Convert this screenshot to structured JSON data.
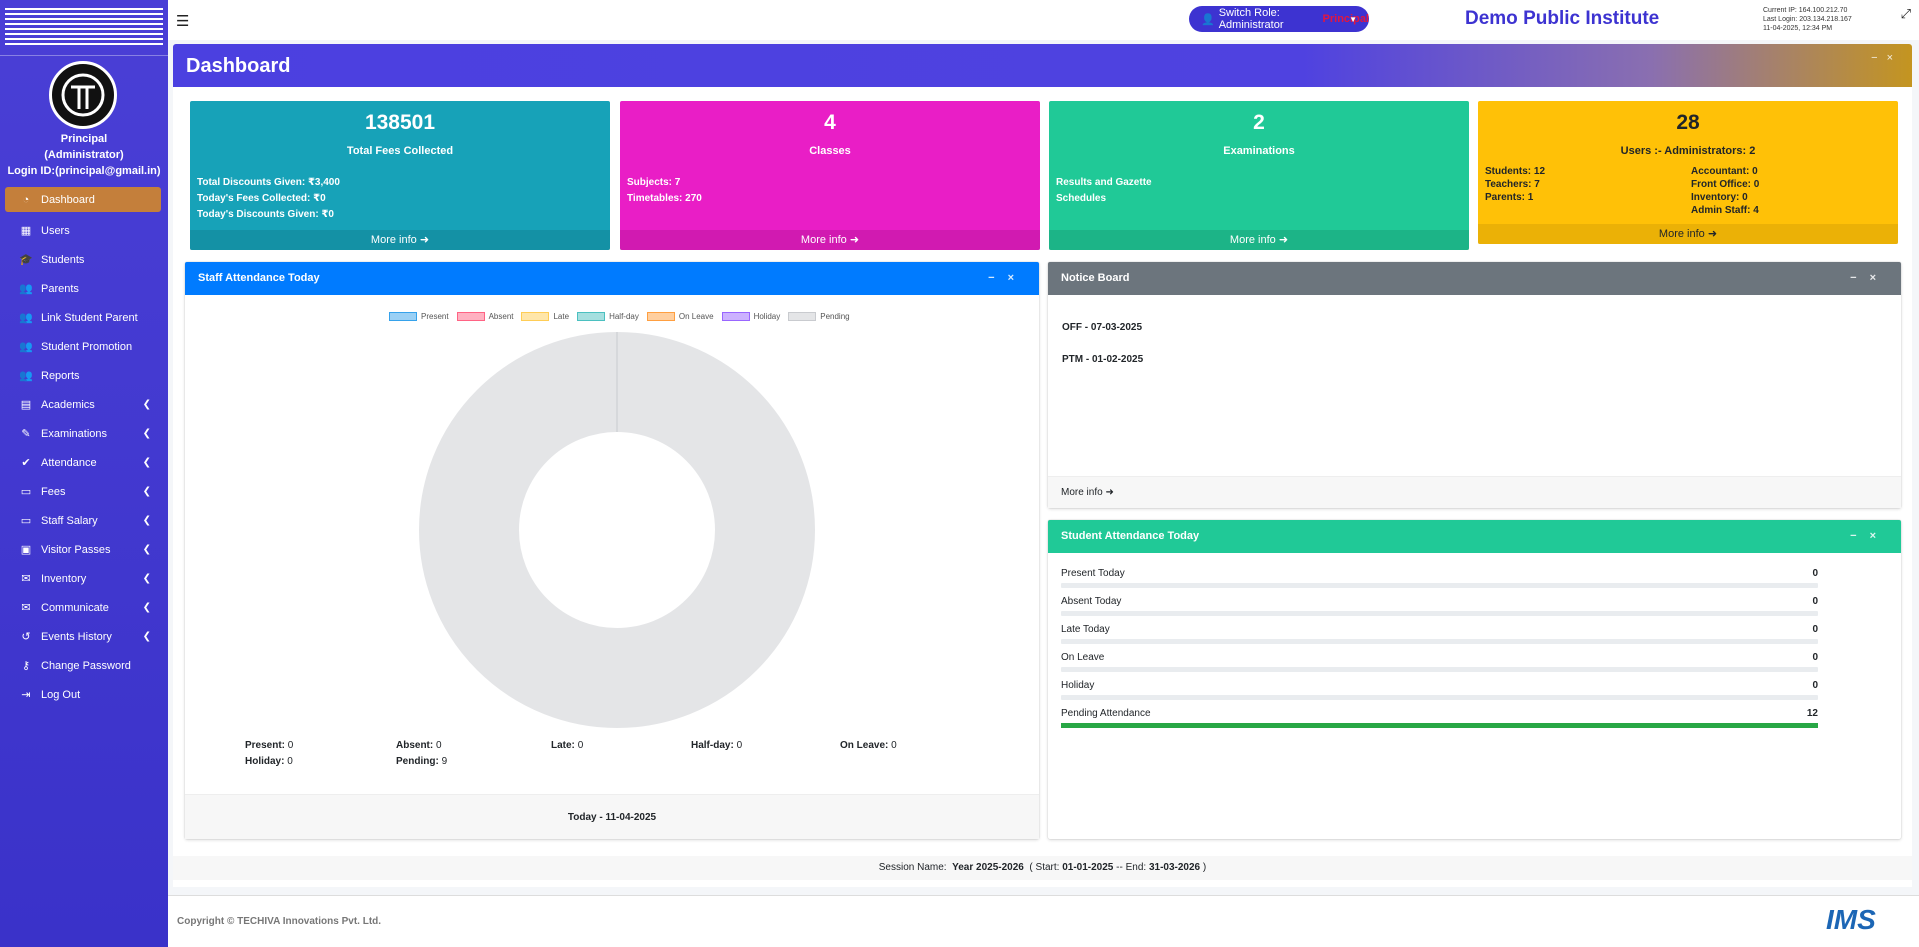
{
  "navbar": {
    "switch_role_label": "Switch Role: Administrator",
    "switch_role_highlight": "Principal",
    "institute_name": "Demo Public Institute",
    "current_ip": "Current IP: 164.100.212.70",
    "last_login": "Last Login: 203.134.218.167",
    "last_login_time": "11-04-2025, 12:34 PM"
  },
  "sidebar": {
    "user_name": "Principal",
    "user_role": "(Administrator)",
    "login_id": "Login ID:(principal@gmail.in)",
    "items": [
      {
        "label": "Dashboard",
        "icon": "tachometer-icon",
        "active": true
      },
      {
        "label": "Users",
        "icon": "grid-icon"
      },
      {
        "label": "Students",
        "icon": "graduation-cap-icon"
      },
      {
        "label": "Parents",
        "icon": "users-icon"
      },
      {
        "label": "Link Student Parent",
        "icon": "users-icon"
      },
      {
        "label": "Student Promotion",
        "icon": "users-icon"
      },
      {
        "label": "Reports",
        "icon": "users-icon"
      },
      {
        "label": "Academics",
        "icon": "book-icon",
        "submenu": true
      },
      {
        "label": "Examinations",
        "icon": "edit-icon",
        "submenu": true
      },
      {
        "label": "Attendance",
        "icon": "user-check-icon",
        "submenu": true
      },
      {
        "label": "Fees",
        "icon": "money-icon",
        "submenu": true
      },
      {
        "label": "Staff Salary",
        "icon": "money-icon",
        "submenu": true
      },
      {
        "label": "Visitor Passes",
        "icon": "id-card-icon",
        "submenu": true
      },
      {
        "label": "Inventory",
        "icon": "comments-icon",
        "submenu": true
      },
      {
        "label": "Communicate",
        "icon": "comments-icon",
        "submenu": true
      },
      {
        "label": "Events History",
        "icon": "history-icon",
        "submenu": true
      },
      {
        "label": "Change Password",
        "icon": "key-icon"
      },
      {
        "label": "Log Out",
        "icon": "sign-out-icon"
      }
    ]
  },
  "dashboard": {
    "title": "Dashboard"
  },
  "stats": {
    "fees": {
      "value": "138501",
      "label": "Total Fees Collected",
      "lines": [
        "Total Discounts Given: ₹3,400",
        "Today's Fees Collected: ₹0",
        "Today's Discounts Given: ₹0"
      ],
      "more": "More info"
    },
    "classes": {
      "value": "4",
      "label": "Classes",
      "lines": [
        "Subjects: 7",
        "Timetables: 270"
      ],
      "more": "More info"
    },
    "exams": {
      "value": "2",
      "label": "Examinations",
      "lines": [
        "Results and Gazette",
        "Schedules"
      ],
      "more": "More info"
    },
    "users": {
      "value": "28",
      "label": "Users :- Administrators: 2",
      "left": [
        "Students: 12",
        "Teachers: 7",
        "Parents: 1"
      ],
      "right": [
        "Accountant: 0",
        "Front Office: 0",
        "Inventory: 0",
        "Admin Staff: 4"
      ],
      "more": "More info"
    }
  },
  "staff_attendance": {
    "title": "Staff Attendance Today",
    "legend": [
      {
        "name": "Present",
        "color": "#9ad0f5",
        "border": "#36a2eb"
      },
      {
        "name": "Absent",
        "color": "#ffb1c1",
        "border": "#ff6384"
      },
      {
        "name": "Late",
        "color": "#ffe6aa",
        "border": "#ffcd56"
      },
      {
        "name": "Half-day",
        "color": "#a5dfdf",
        "border": "#4bc0c0"
      },
      {
        "name": "On Leave",
        "color": "#ffcf9f",
        "border": "#ff9f40"
      },
      {
        "name": "Holiday",
        "color": "#ccb2ff",
        "border": "#9966ff"
      },
      {
        "name": "Pending",
        "color": "#e4e5e7",
        "border": "#c9cbcf"
      }
    ],
    "stats": [
      {
        "label": "Present:",
        "value": "0"
      },
      {
        "label": "Absent:",
        "value": "0"
      },
      {
        "label": "Late:",
        "value": "0"
      },
      {
        "label": "Half-day:",
        "value": "0"
      },
      {
        "label": "On Leave:",
        "value": "0"
      },
      {
        "label": "Holiday:",
        "value": "0"
      },
      {
        "label": "Pending:",
        "value": "9"
      }
    ],
    "footer": "Today - 11-04-2025"
  },
  "notice_board": {
    "title": "Notice Board",
    "items": [
      "OFF - 07-03-2025",
      "PTM - 01-02-2025"
    ],
    "more": "More info"
  },
  "student_attendance": {
    "title": "Student Attendance Today",
    "rows": [
      {
        "label": "Present Today",
        "value": "0",
        "fraction": 0
      },
      {
        "label": "Absent Today",
        "value": "0",
        "fraction": 0
      },
      {
        "label": "Late Today",
        "value": "0",
        "fraction": 0
      },
      {
        "label": "On Leave",
        "value": "0",
        "fraction": 0
      },
      {
        "label": "Holiday",
        "value": "0",
        "fraction": 0
      },
      {
        "label": "Pending Attendance",
        "value": "12",
        "fraction": 1
      }
    ]
  },
  "session": {
    "label": "Session Name:",
    "name": "Year 2025-2026",
    "start_label": "( Start:",
    "start": "01-01-2025",
    "end_label": "-- End:",
    "end": "31-03-2026",
    "close": ")"
  },
  "footer": {
    "copyright": "Copyright © TECHIVA Innovations Pvt. Ltd.",
    "logo_text": "IMS"
  }
}
